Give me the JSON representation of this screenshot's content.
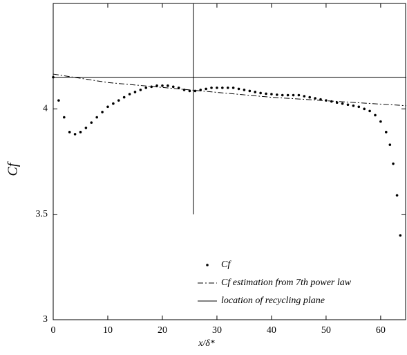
{
  "chart_data": {
    "type": "scatter",
    "xlabel": "x/δ*",
    "ylabel": "Cf",
    "xlim": [
      0,
      64.7
    ],
    "ylim": [
      3,
      4.5
    ],
    "xticks": [
      0,
      10,
      20,
      30,
      40,
      50,
      60
    ],
    "yticks": [
      3,
      3.5,
      4
    ],
    "hline": 4.15,
    "legend": "lower right",
    "series": [
      {
        "name": "Cf",
        "kind": "dots",
        "color": "#000000",
        "x": [
          0,
          1,
          2,
          3,
          4,
          5,
          6,
          7,
          8,
          9,
          10,
          11,
          12,
          13,
          14,
          15,
          16,
          17,
          18,
          19,
          20,
          21,
          22,
          23,
          24,
          25,
          26,
          27,
          28,
          29,
          30,
          31,
          32,
          33,
          34,
          35,
          36,
          37,
          38,
          39,
          40,
          41,
          42,
          43,
          44,
          45,
          46,
          47,
          48,
          49,
          50,
          51,
          52,
          53,
          54,
          55,
          56,
          57,
          58,
          59,
          60,
          61,
          61.7,
          62.3,
          63,
          63.6
        ],
        "values": [
          4.15,
          4.04,
          3.96,
          3.89,
          3.88,
          3.89,
          3.91,
          3.935,
          3.96,
          3.985,
          4.01,
          4.025,
          4.04,
          4.055,
          4.07,
          4.08,
          4.09,
          4.1,
          4.105,
          4.11,
          4.11,
          4.11,
          4.105,
          4.1,
          4.09,
          4.085,
          4.085,
          4.09,
          4.095,
          4.1,
          4.1,
          4.1,
          4.1,
          4.1,
          4.095,
          4.09,
          4.085,
          4.08,
          4.075,
          4.072,
          4.07,
          4.067,
          4.065,
          4.065,
          4.065,
          4.065,
          4.06,
          4.055,
          4.05,
          4.045,
          4.04,
          4.035,
          4.03,
          4.025,
          4.02,
          4.015,
          4.01,
          4.0,
          3.99,
          3.97,
          3.94,
          3.89,
          3.83,
          3.74,
          3.59,
          3.4
        ]
      },
      {
        "name": "Cf estimation from 7th power law",
        "kind": "dashdot",
        "color": "#000000",
        "x": [
          0,
          10,
          25,
          40,
          64.7
        ],
        "values": [
          4.165,
          4.125,
          4.09,
          4.055,
          4.015
        ]
      },
      {
        "name": "location of recycling plane",
        "kind": "solid",
        "color": "#000000",
        "x": [
          25.7,
          25.7
        ],
        "values": [
          3.5,
          4.5
        ]
      }
    ]
  }
}
